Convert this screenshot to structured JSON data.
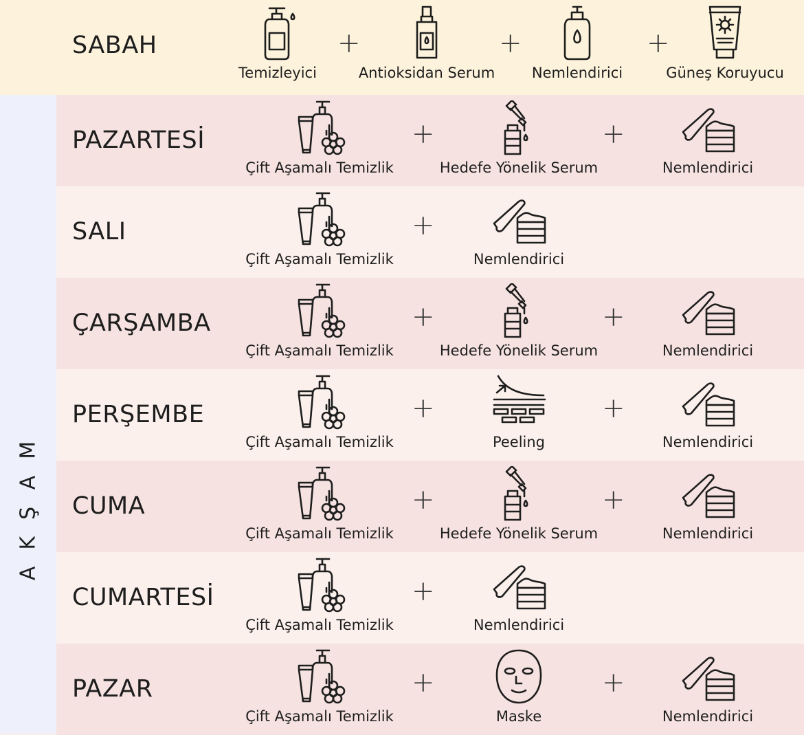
{
  "morning": {
    "label": "SABAH",
    "items": [
      {
        "label": "Temizleyici",
        "icon": "pump-bottle-icon"
      },
      {
        "label": "Antioksidan Serum",
        "icon": "serum-bottle-icon"
      },
      {
        "label": "Nemlendirici",
        "icon": "lotion-bottle-icon"
      },
      {
        "label": "Güneş Koruyucu",
        "icon": "sunscreen-tube-icon"
      }
    ]
  },
  "evening": {
    "label": "AKŞAM",
    "rows": [
      {
        "day": "PAZARTESİ",
        "items": [
          {
            "label": "Çift Aşamalı Temizlik",
            "icon": "cleanser-set-icon"
          },
          {
            "label": "Hedefe Yönelik Serum",
            "icon": "dropper-serum-icon"
          },
          {
            "label": "Nemlendirici",
            "icon": "cream-jar-icon"
          }
        ]
      },
      {
        "day": "SALI",
        "items": [
          {
            "label": "Çift Aşamalı Temizlik",
            "icon": "cleanser-set-icon"
          },
          {
            "label": "Nemlendirici",
            "icon": "cream-jar-icon"
          }
        ]
      },
      {
        "day": "ÇARŞAMBA",
        "items": [
          {
            "label": "Çift Aşamalı Temizlik",
            "icon": "cleanser-set-icon"
          },
          {
            "label": "Hedefe Yönelik Serum",
            "icon": "dropper-serum-icon"
          },
          {
            "label": "Nemlendirici",
            "icon": "cream-jar-icon"
          }
        ]
      },
      {
        "day": "PERŞEMBE",
        "items": [
          {
            "label": "Çift Aşamalı Temizlik",
            "icon": "cleanser-set-icon"
          },
          {
            "label": "Peeling",
            "icon": "peeling-icon"
          },
          {
            "label": "Nemlendirici",
            "icon": "cream-jar-icon"
          }
        ]
      },
      {
        "day": "CUMA",
        "items": [
          {
            "label": "Çift Aşamalı Temizlik",
            "icon": "cleanser-set-icon"
          },
          {
            "label": "Hedefe Yönelik Serum",
            "icon": "dropper-serum-icon"
          },
          {
            "label": "Nemlendirici",
            "icon": "cream-jar-icon"
          }
        ]
      },
      {
        "day": "CUMARTESİ",
        "items": [
          {
            "label": "Çift Aşamalı Temizlik",
            "icon": "cleanser-set-icon"
          },
          {
            "label": "Nemlendirici",
            "icon": "cream-jar-icon"
          }
        ]
      },
      {
        "day": "PAZAR",
        "items": [
          {
            "label": "Çift Aşamalı Temizlik",
            "icon": "cleanser-set-icon"
          },
          {
            "label": "Maske",
            "icon": "face-mask-icon"
          },
          {
            "label": "Nemlendirici",
            "icon": "cream-jar-icon"
          }
        ]
      }
    ]
  },
  "plus_symbol": "+",
  "colors": {
    "morning_bg": "#fdf3dc",
    "side_bg": "#eef0fb",
    "row_pink": "#f6e3e1",
    "row_light": "#fbf0ec",
    "ink": "#1e1e1e"
  }
}
